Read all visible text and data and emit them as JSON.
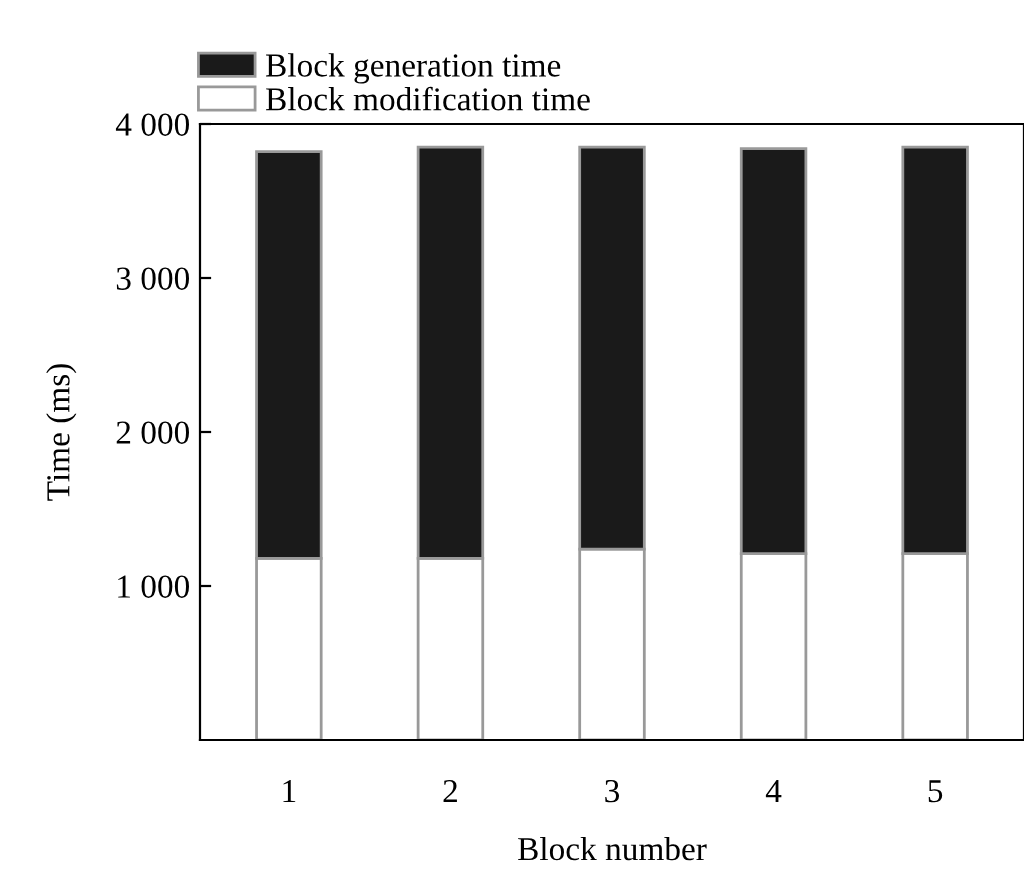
{
  "chart_data": {
    "type": "bar",
    "stacked": true,
    "xlabel": "Block number",
    "ylabel": "Time (ms)",
    "categories": [
      "1",
      "2",
      "3",
      "4",
      "5"
    ],
    "series": [
      {
        "name": "Block modification time",
        "color": "#ffffff",
        "values": [
          1180,
          1180,
          1240,
          1210,
          1210
        ]
      },
      {
        "name": "Block generation time",
        "color": "#1a1a1a",
        "values": [
          2640,
          2670,
          2610,
          2630,
          2640
        ]
      }
    ],
    "ylim": [
      0,
      4000
    ],
    "yticks": [
      {
        "value": 1000,
        "label": "1 000"
      },
      {
        "value": 2000,
        "label": "2 000"
      },
      {
        "value": 3000,
        "label": "3 000"
      },
      {
        "value": 4000,
        "label": "4 000"
      }
    ],
    "legend": "top left"
  }
}
